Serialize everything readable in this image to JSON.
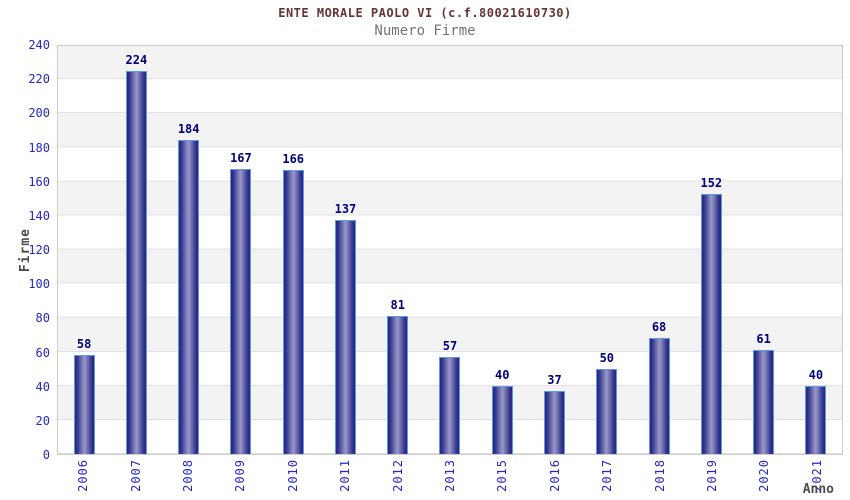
{
  "chart_data": {
    "type": "bar",
    "title": "ENTE MORALE PAOLO VI (c.f.80021610730)",
    "subtitle": "Numero Firme",
    "xlabel": "Anno",
    "ylabel": "Firme",
    "categories": [
      "2006",
      "2007",
      "2008",
      "2009",
      "2010",
      "2011",
      "2012",
      "2013",
      "2015",
      "2016",
      "2017",
      "2018",
      "2019",
      "2020",
      "2021"
    ],
    "values": [
      58,
      224,
      184,
      167,
      166,
      137,
      81,
      57,
      40,
      37,
      50,
      68,
      152,
      61,
      40
    ],
    "ylim": [
      0,
      240
    ],
    "ytick_step": 20,
    "grid": "alternating-horizontal-bands",
    "legend": "none",
    "colors": {
      "title_color": "#663333",
      "subtitle_color": "#737373",
      "tick_label": "#2626cc",
      "value_label": "#00007d",
      "axis_title": "#4d4d4d",
      "bar_edge": "#26267e",
      "bar_center": "#9a9ac8",
      "bar_border": "#5a9ae6",
      "band": "#f3f3f3",
      "band_line": "#e0e0e0",
      "plot_border": "#cccccc"
    }
  }
}
